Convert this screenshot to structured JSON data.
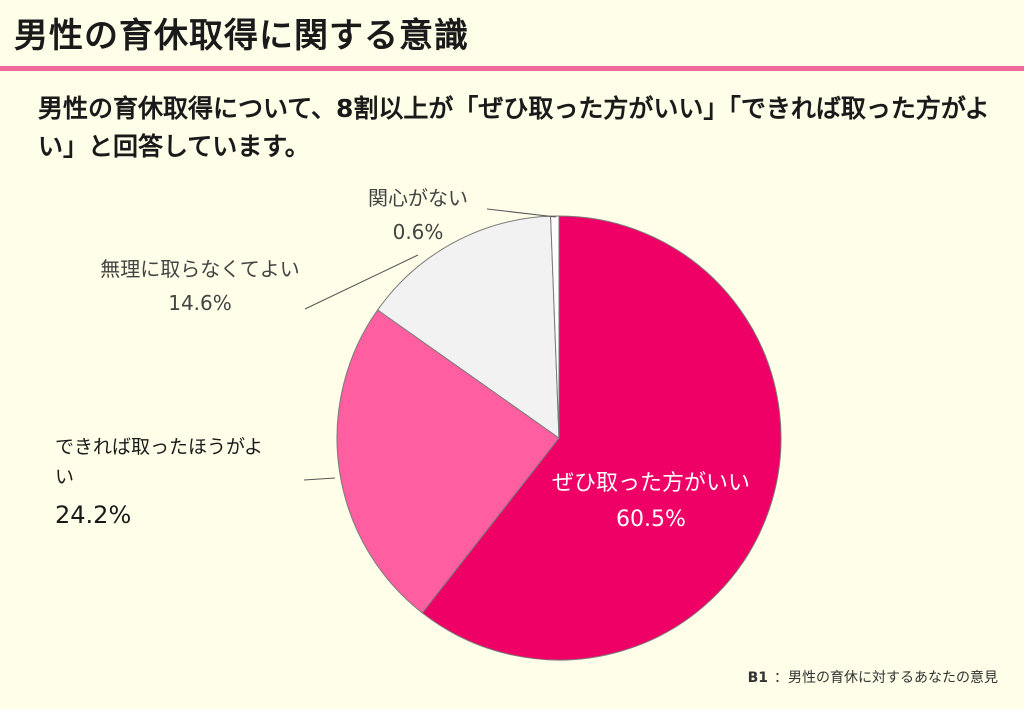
{
  "title": "男性の育休取得に関する意識",
  "lead": "男性の育休取得について、8割以上が「ぜひ取った方がいい」「できれば取った方がよい」と回答しています。",
  "colors": {
    "accent": "#f06a9e",
    "background": "#fffee8"
  },
  "source": {
    "code": "B1",
    "text": "：男性の育休に対するあなたの意見"
  },
  "chart_data": {
    "type": "pie",
    "start": "12 o'clock",
    "direction": "clockwise",
    "slices": [
      {
        "label": "ぜひ取った方がいい",
        "value": 60.5,
        "value_label": "60.5%",
        "color": "#ee0066"
      },
      {
        "label": "できれば取ったほうがよい",
        "value": 24.2,
        "value_label": "24.2%",
        "color": "#ff5fa0"
      },
      {
        "label": "無理に取らなくてよい",
        "value": 14.6,
        "value_label": "14.6%",
        "color": "#f2f2f2"
      },
      {
        "label": "関心がない",
        "value": 0.6,
        "value_label": "0.6%",
        "color": "#ffffff"
      }
    ]
  }
}
